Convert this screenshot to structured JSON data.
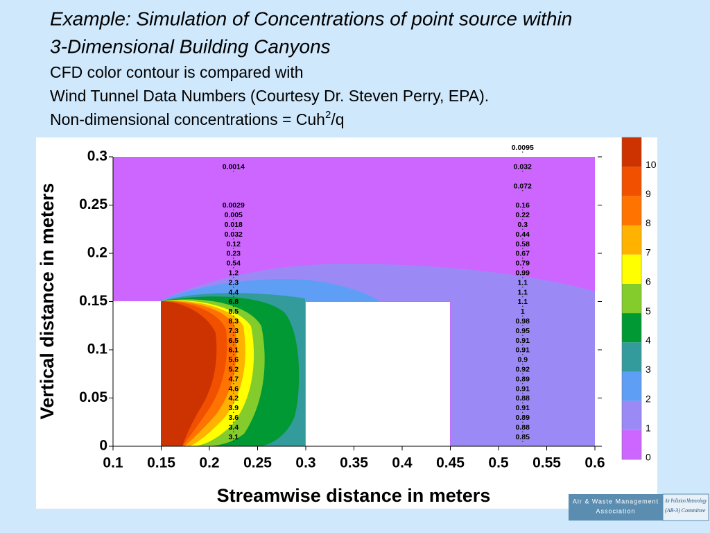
{
  "slide": {
    "title_lines": [
      "Example: Simulation of Concentrations of point source within",
      "3-Dimensional Building Canyons"
    ],
    "note_lines": [
      "CFD color contour is compared with",
      "Wind Tunnel Data Numbers (Courtesy Dr. Steven Perry, EPA)."
    ],
    "formula": {
      "text": "Non-dimensional concentrations = Cuh",
      "superscript": "2",
      "suffix": "/q"
    }
  },
  "chart_data": {
    "type": "contour",
    "xlabel": "Streamwise distance in meters",
    "ylabel": "Vertical distance in meters",
    "xlim": [
      0.1,
      0.6
    ],
    "ylim": [
      0,
      0.3
    ],
    "xticks": [
      0.1,
      0.15,
      0.2,
      0.25,
      0.3,
      0.35,
      0.4,
      0.45,
      0.5,
      0.55,
      0.6
    ],
    "yticks": [
      0,
      0.05,
      0.1,
      0.15,
      0.2,
      0.25,
      0.3
    ],
    "colorbar": {
      "ticks": [
        0,
        1,
        2,
        3,
        4,
        5,
        6,
        7,
        8,
        9,
        10
      ],
      "colors": [
        "#cc66ff",
        "#9b8af6",
        "#5f9ef5",
        "#339b9b",
        "#009933",
        "#84cc2c",
        "#ffff00",
        "#ffb300",
        "#ff7300",
        "#f05000",
        "#cc3300"
      ]
    },
    "measurements": [
      {
        "x": 0.225,
        "y": [
          0.285,
          0.245,
          0.235,
          0.225,
          0.215,
          0.205,
          0.195,
          0.185,
          0.175,
          0.165,
          0.155,
          0.145,
          0.135,
          0.125,
          0.115,
          0.105,
          0.095,
          0.085,
          0.075,
          0.065,
          0.055,
          0.045,
          0.035,
          0.025,
          0.015,
          0.005
        ],
        "values": [
          0.0014,
          0.0029,
          0.005,
          0.018,
          0.032,
          0.12,
          0.23,
          0.54,
          1.2,
          2.3,
          4.4,
          6.8,
          8.5,
          8.3,
          7.3,
          6.5,
          6.1,
          5.6,
          5.2,
          4.7,
          4.6,
          4.2,
          3.9,
          3.6,
          3.4,
          3.1
        ]
      },
      {
        "x": 0.525,
        "y": [
          0.305,
          0.285,
          0.265,
          0.245,
          0.235,
          0.225,
          0.215,
          0.205,
          0.195,
          0.185,
          0.175,
          0.165,
          0.155,
          0.145,
          0.135,
          0.125,
          0.115,
          0.105,
          0.095,
          0.085,
          0.075,
          0.065,
          0.055,
          0.045,
          0.035,
          0.025,
          0.015,
          0.005
        ],
        "values": [
          0.0095,
          0.032,
          0.072,
          0.16,
          0.22,
          0.3,
          0.44,
          0.58,
          0.67,
          0.79,
          0.99,
          1.1,
          1.1,
          1.1,
          1,
          0.98,
          0.95,
          0.91,
          0.91,
          0.9,
          0.92,
          0.89,
          0.91,
          0.88,
          0.91,
          0.89,
          0.88,
          0.85
        ]
      }
    ]
  },
  "logo": {
    "name_line1": "Air & Waste Management",
    "name_line2": "Association",
    "committee_line1": "Air Pollution Meteorology",
    "committee_line2": "(AB-3) Committee"
  }
}
